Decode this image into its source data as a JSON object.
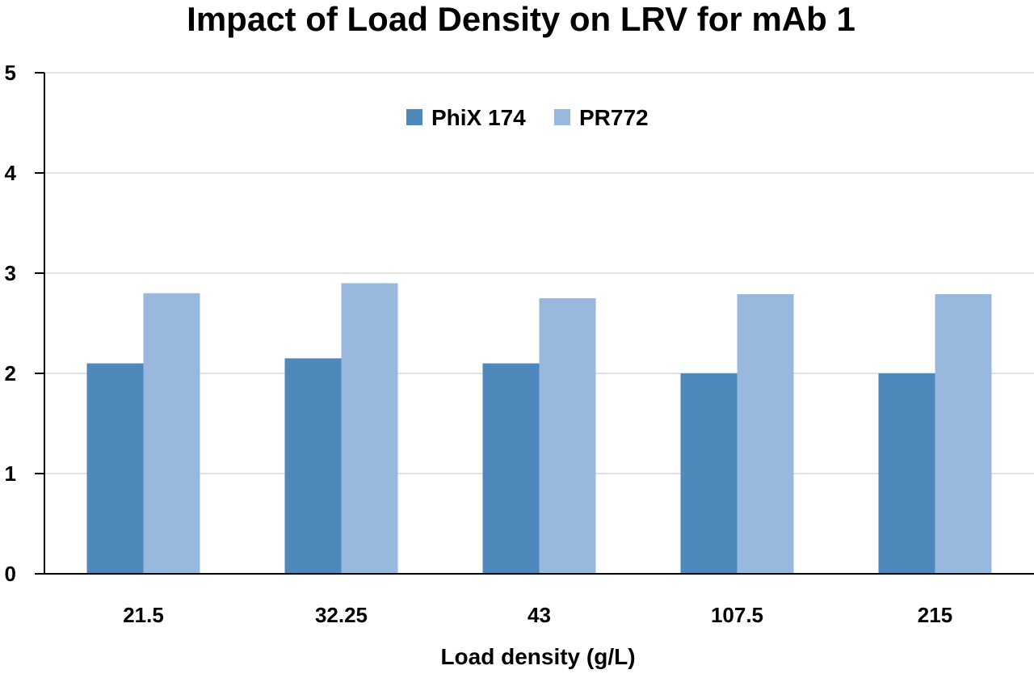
{
  "chart_data": {
    "type": "bar",
    "title": "Impact of Load Density on LRV for mAb 1",
    "xlabel": "Load density (g/L)",
    "ylabel": "",
    "categories": [
      "21.5",
      "32.25",
      "43",
      "107.5",
      "215"
    ],
    "series": [
      {
        "name": "PhiX 174",
        "color": "#4f88bb",
        "values": [
          2.1,
          2.15,
          2.1,
          2.0,
          2.0
        ]
      },
      {
        "name": "PR772",
        "color": "#98b8de",
        "values": [
          2.8,
          2.9,
          2.75,
          2.79,
          2.79
        ]
      }
    ],
    "ylim": [
      0,
      5
    ],
    "yticks": [
      "0",
      "1",
      "2",
      "3",
      "4",
      "5"
    ],
    "grid": true,
    "legend_position": "top-center"
  }
}
